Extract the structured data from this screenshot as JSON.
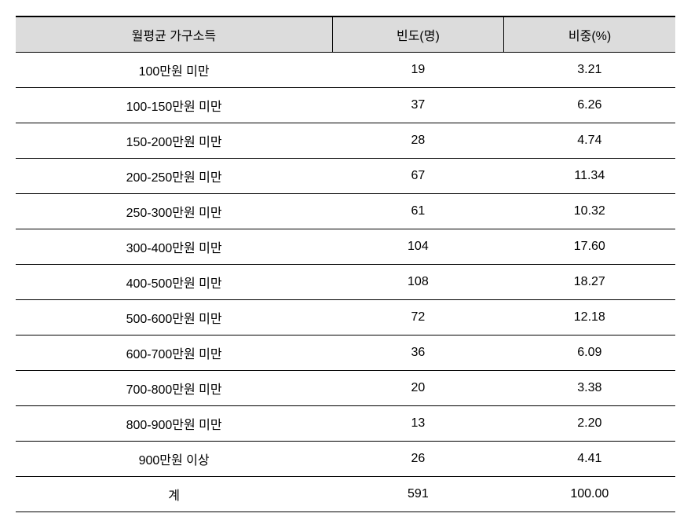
{
  "table": {
    "type": "table",
    "background_color": "#ffffff",
    "header_background": "#dcdcdc",
    "border_color": "#000000",
    "top_border_width": 2,
    "cell_border_width": 1,
    "font_size": 16,
    "column_widths": [
      "48%",
      "26%",
      "26%"
    ],
    "columns": [
      "월평균 가구소득",
      "빈도(명)",
      "비중(%)"
    ],
    "rows": [
      [
        "100만원 미만",
        "19",
        "3.21"
      ],
      [
        "100-150만원 미만",
        "37",
        "6.26"
      ],
      [
        "150-200만원 미만",
        "28",
        "4.74"
      ],
      [
        "200-250만원 미만",
        "67",
        "11.34"
      ],
      [
        "250-300만원 미만",
        "61",
        "10.32"
      ],
      [
        "300-400만원 미만",
        "104",
        "17.60"
      ],
      [
        "400-500만원 미만",
        "108",
        "18.27"
      ],
      [
        "500-600만원 미만",
        "72",
        "12.18"
      ],
      [
        "600-700만원 미만",
        "36",
        "6.09"
      ],
      [
        "700-800만원 미만",
        "20",
        "3.38"
      ],
      [
        "800-900만원 미만",
        "13",
        "2.20"
      ],
      [
        "900만원 이상",
        "26",
        "4.41"
      ],
      [
        "계",
        "591",
        "100.00"
      ]
    ]
  }
}
